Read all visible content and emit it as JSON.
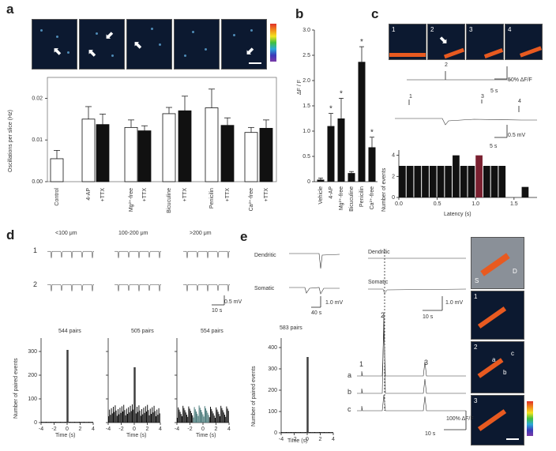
{
  "panels": {
    "a": "a",
    "b": "b",
    "c": "c",
    "d": "d",
    "e": "e"
  },
  "a": {
    "ylabel": "Oscillations per slice (Hz)",
    "yticks": [
      "0.00",
      "0.01",
      "0.02"
    ],
    "categories": [
      "Control",
      "4-AP",
      "+TTX",
      "Mg²⁺-free",
      "+TTX",
      "Bicuculine",
      "+TTX",
      "Penicilin",
      "+TTX",
      "Ca²⁺-free",
      "+TTX"
    ]
  },
  "b": {
    "ylabel": "ΔF / F",
    "yticks": [
      "0",
      "0.5",
      "1.0",
      "1.5",
      "2.0",
      "2.5",
      "3.0"
    ],
    "categories": [
      "Vehicle",
      "4-AP",
      "Mg²⁺-free",
      "Bicuculine",
      "Penicilin",
      "Ca²⁺-free"
    ],
    "star": "*"
  },
  "c": {
    "tiles": [
      "1",
      "2",
      "3",
      "4"
    ],
    "scale1": "50% ΔF/F",
    "scale1t": "5 s",
    "scale2": "0.5 mV",
    "scale2t": "5 s",
    "peaks": [
      "1",
      "2",
      "3",
      "4"
    ],
    "hist_ylabel": "Number of events",
    "hist_yticks": [
      "0",
      "2",
      "4"
    ],
    "hist_xlabel": "Latency (s)",
    "hist_xticks": [
      "0.0",
      "0.5",
      "1.0",
      "1.5"
    ]
  },
  "d": {
    "cols": [
      "<100 μm",
      "100-200 μm",
      ">200 μm"
    ],
    "rows": [
      "1",
      "2"
    ],
    "scale_v": "0.5 mV",
    "scale_t": "10 s",
    "pairs": [
      "544 pairs",
      "505 pairs",
      "554 pairs"
    ],
    "ylabel": "Number of paired events",
    "yticks": [
      "0",
      "100",
      "200",
      "300"
    ],
    "xticks": [
      "-4",
      "-2",
      "0",
      "2",
      "4"
    ],
    "xlabel": "Time (s)"
  },
  "e": {
    "trace1": "Dendritic",
    "trace2": "Somatic",
    "scale_v": "1.0 mV",
    "scale_t": "40 s",
    "pairs": "583 pairs",
    "ylabel": "Number of paired events",
    "yticks": [
      "0",
      "100",
      "200",
      "300",
      "400"
    ],
    "xticks": [
      "-4",
      "-2",
      "0",
      "2",
      "4"
    ],
    "xlabel": "Time (s)",
    "mid_trace1": "Dendritic",
    "mid_trace2": "Somatic",
    "mid_scale_v": "1.0 mV",
    "mid_scale_t": "10 s",
    "peaks": [
      "1",
      "2",
      "3"
    ],
    "rows": [
      "a",
      "b",
      "c"
    ],
    "cal_v": "100% ΔF/F",
    "cal_t": "10 s",
    "tiles": [
      "S",
      "D",
      "1",
      "2",
      "3"
    ],
    "tile_letters": [
      "a",
      "b",
      "c"
    ]
  },
  "chart_data": [
    {
      "type": "bar",
      "title": "",
      "ylabel": "Oscillations per slice (Hz)",
      "ylim": [
        0,
        0.025
      ],
      "categories": [
        "Control",
        "4-AP",
        "+TTX",
        "Mg²⁺-free",
        "+TTX",
        "Bicuculine",
        "+TTX",
        "Penicilin",
        "+TTX",
        "Ca²⁺-free",
        "+TTX"
      ],
      "values": [
        0.0055,
        0.015,
        0.0137,
        0.013,
        0.0122,
        0.0163,
        0.017,
        0.0177,
        0.0135,
        0.0118,
        0.0128
      ],
      "errors": [
        0.002,
        0.003,
        0.0025,
        0.0018,
        0.0012,
        0.0015,
        0.0035,
        0.0045,
        0.0018,
        0.0012,
        0.002
      ]
    },
    {
      "type": "bar",
      "title": "",
      "ylabel": "ΔF / F",
      "ylim": [
        0,
        3.0
      ],
      "categories": [
        "Vehicle",
        "4-AP",
        "Mg²⁺-free",
        "Bicuculine",
        "Penicilin",
        "Ca²⁺-free"
      ],
      "values": [
        0.04,
        1.1,
        1.25,
        0.17,
        2.37,
        0.68
      ],
      "errors": [
        0.03,
        0.25,
        0.4,
        0.03,
        0.3,
        0.2
      ]
    },
    {
      "type": "bar",
      "title": "",
      "ylabel": "Number of events",
      "xlabel": "Latency (s)",
      "ylim": [
        0,
        4.5
      ],
      "x": [
        0.05,
        0.15,
        0.25,
        0.35,
        0.45,
        0.55,
        0.65,
        0.75,
        0.85,
        0.95,
        1.05,
        1.15,
        1.25,
        1.35,
        1.65
      ],
      "values": [
        3,
        3,
        3,
        3,
        3,
        3,
        3,
        4,
        3,
        3,
        4,
        3,
        3,
        3,
        1
      ]
    }
  ]
}
